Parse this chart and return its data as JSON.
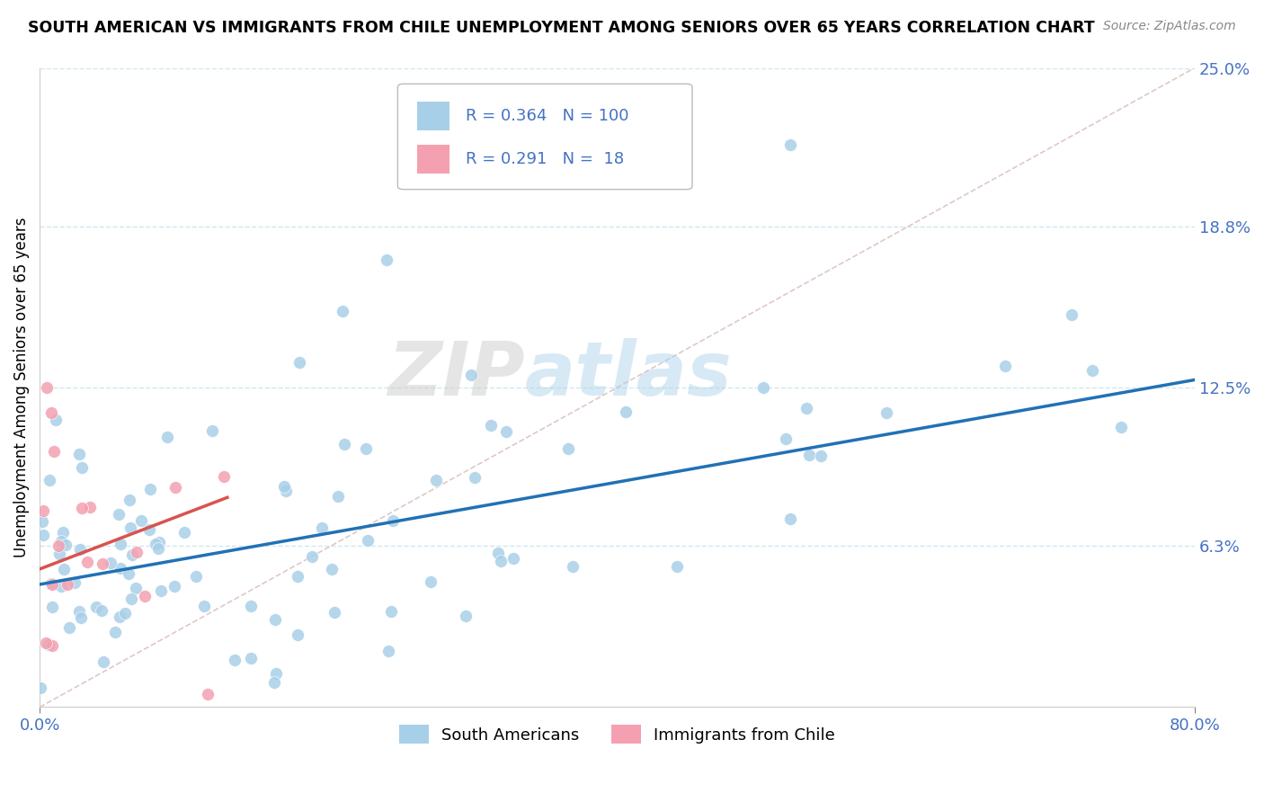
{
  "title": "SOUTH AMERICAN VS IMMIGRANTS FROM CHILE UNEMPLOYMENT AMONG SENIORS OVER 65 YEARS CORRELATION CHART",
  "source": "Source: ZipAtlas.com",
  "ylabel": "Unemployment Among Seniors over 65 years",
  "xlim": [
    0.0,
    0.8
  ],
  "ylim": [
    0.0,
    0.25
  ],
  "x_tick_labels": [
    "0.0%",
    "80.0%"
  ],
  "y_tick_labels": [
    "25.0%",
    "18.8%",
    "12.5%",
    "6.3%"
  ],
  "y_tick_values": [
    0.25,
    0.188,
    0.125,
    0.063
  ],
  "watermark_zip": "ZIP",
  "watermark_atlas": "atlas",
  "legend_1_label": "South Americans",
  "legend_2_label": "Immigrants from Chile",
  "R1": 0.364,
  "N1": 100,
  "R2": 0.291,
  "N2": 18,
  "scatter_color_1": "#a8cfe8",
  "scatter_color_2": "#f4a0b0",
  "line_color_1": "#2171b5",
  "line_color_2": "#d9534f",
  "line1_x0": 0.0,
  "line1_y0": 0.048,
  "line1_x1": 0.8,
  "line1_y1": 0.128,
  "line2_x0": 0.0,
  "line2_y0": 0.054,
  "line2_x1": 0.13,
  "line2_y1": 0.082,
  "diag_color": "#e0c8c8",
  "grid_color": "#d0e8f0"
}
